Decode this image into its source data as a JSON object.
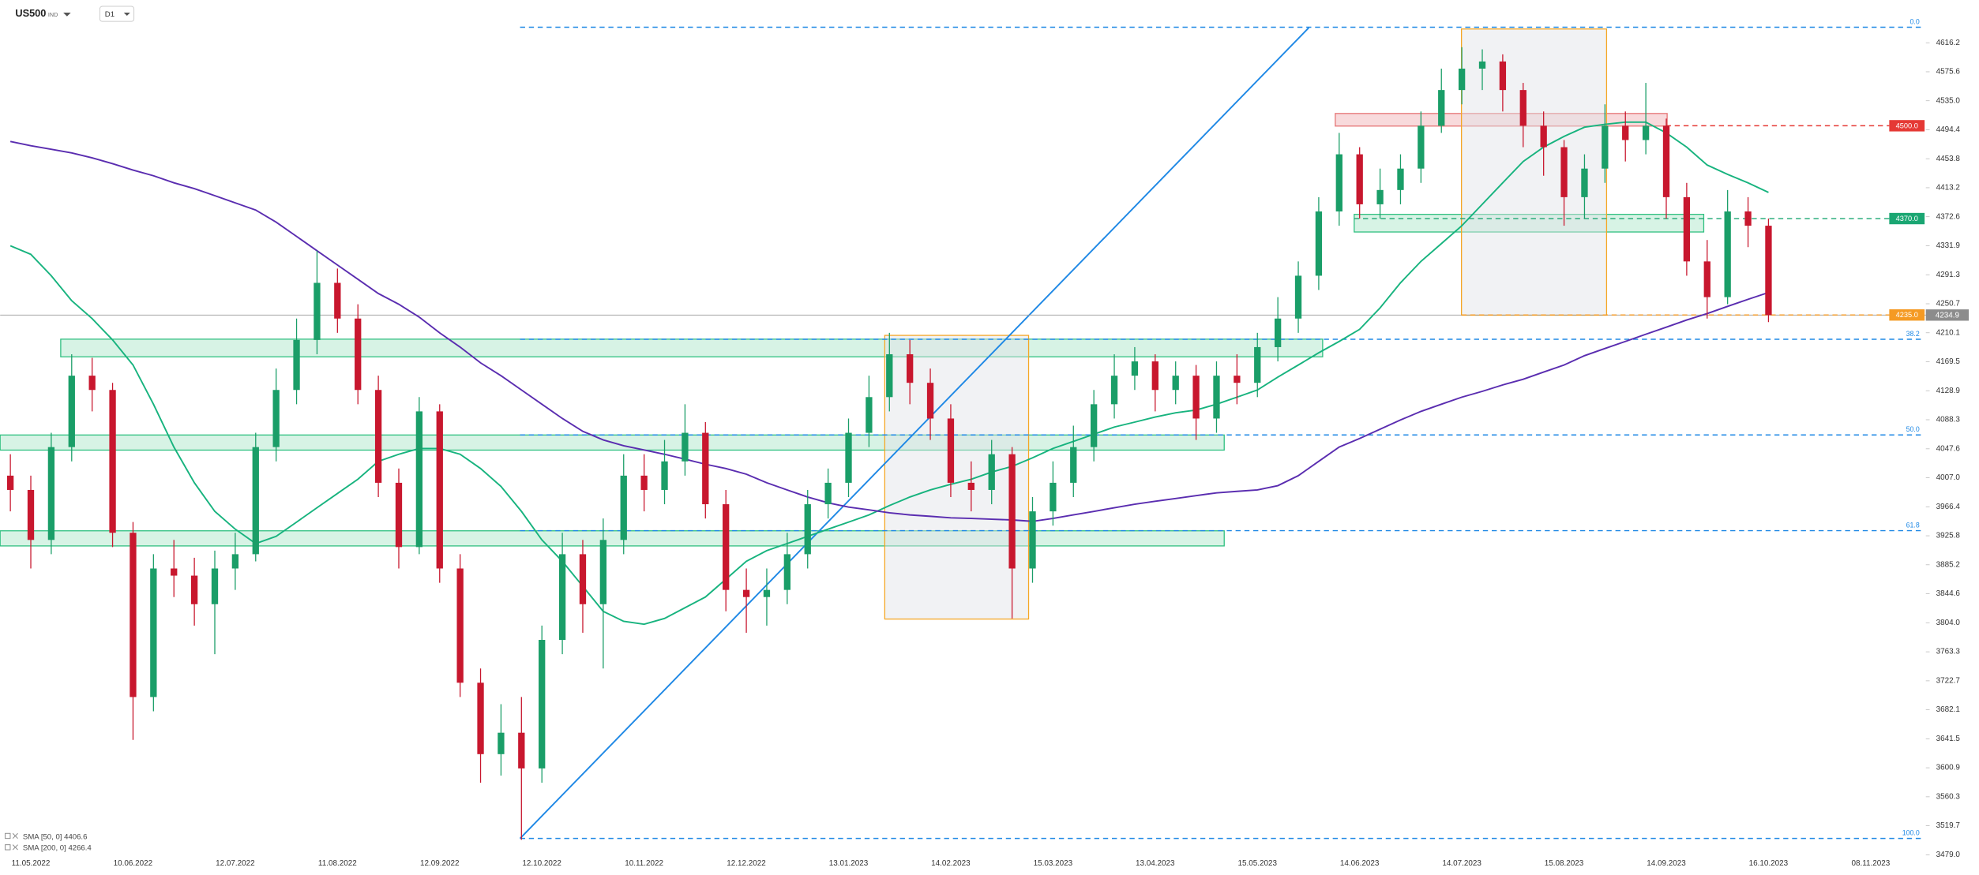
{
  "chart_data": {
    "type": "candlestick",
    "title": "US500",
    "subtitle": "IND",
    "timeframe": "D1",
    "up_color": "#1a9e68",
    "down_color": "#c8172e",
    "categories": [
      null,
      "11.05.2022",
      null,
      null,
      null,
      null,
      "10.06.2022",
      null,
      null,
      null,
      null,
      "12.07.2022",
      null,
      null,
      null,
      null,
      "11.08.2022",
      null,
      null,
      null,
      null,
      "12.09.2022",
      null,
      null,
      null,
      null,
      "12.10.2022",
      null,
      null,
      null,
      null,
      "10.11.2022",
      null,
      null,
      null,
      null,
      "12.12.2022",
      null,
      null,
      null,
      null,
      "13.01.2023",
      null,
      null,
      null,
      null,
      "14.02.2023",
      null,
      null,
      null,
      null,
      "15.03.2023",
      null,
      null,
      null,
      null,
      "13.04.2023",
      null,
      null,
      null,
      null,
      "15.05.2023",
      null,
      null,
      null,
      null,
      "14.06.2023",
      null,
      null,
      null,
      null,
      "14.07.2023",
      null,
      null,
      null,
      null,
      "15.08.2023",
      null,
      null,
      null,
      null,
      "14.09.2023",
      null,
      null,
      null,
      null,
      "16.10.2023",
      null,
      null,
      null,
      null,
      "08.11.2023"
    ],
    "open": [
      4010,
      3990,
      3920,
      4050,
      4150,
      4130,
      3930,
      3700,
      3880,
      3870,
      3830,
      3880,
      3900,
      4050,
      4130,
      4200,
      4280,
      4230,
      4130,
      4000,
      3910,
      4100,
      3880,
      3720,
      3620,
      3650,
      3600,
      3780,
      3900,
      3830,
      3920,
      4010,
      3990,
      4030,
      4070,
      3970,
      3850,
      3840,
      3850,
      3900,
      3970,
      4000,
      4070,
      4120,
      4180,
      4140,
      4090,
      4000,
      3990,
      4040,
      3880,
      3960,
      4000,
      4050,
      4110,
      4150,
      4170,
      4130,
      4150,
      4090,
      4150,
      4140,
      4190,
      4230,
      4290,
      4380,
      4460,
      4390,
      4410,
      4440,
      4500,
      4550,
      4580,
      4590,
      4550,
      4500,
      4470,
      4400,
      4440,
      4500,
      4480,
      4500,
      4400,
      4310,
      4260,
      4380,
      4360,
      null,
      null,
      null,
      null,
      null
    ],
    "high": [
      4040,
      4010,
      4070,
      4180,
      4175,
      4140,
      3945,
      3900,
      3920,
      3895,
      3905,
      3930,
      4070,
      4160,
      4230,
      4325,
      4300,
      4250,
      4150,
      4020,
      4120,
      4110,
      3900,
      3740,
      3690,
      3700,
      3800,
      3930,
      3920,
      3950,
      4040,
      4040,
      4060,
      4110,
      4085,
      3990,
      3880,
      3880,
      3930,
      3990,
      4020,
      4090,
      4150,
      4210,
      4200,
      4160,
      4110,
      4030,
      4060,
      4050,
      3980,
      4030,
      4080,
      4130,
      4180,
      4190,
      4180,
      4170,
      4165,
      4170,
      4180,
      4210,
      4260,
      4310,
      4400,
      4490,
      4470,
      4440,
      4460,
      4520,
      4580,
      4610,
      4607,
      4600,
      4560,
      4520,
      4480,
      4460,
      4530,
      4520,
      4560,
      4510,
      4420,
      4340,
      4410,
      4400,
      4370,
      null,
      null,
      null,
      null,
      null
    ],
    "low": [
      3960,
      3880,
      3900,
      4030,
      4100,
      3910,
      3640,
      3680,
      3840,
      3800,
      3760,
      3850,
      3890,
      4030,
      4110,
      4180,
      4210,
      4110,
      3980,
      3880,
      3900,
      3860,
      3700,
      3580,
      3590,
      3500,
      3580,
      3760,
      3790,
      3740,
      3900,
      3960,
      3970,
      4010,
      3950,
      3820,
      3790,
      3800,
      3830,
      3880,
      3950,
      3980,
      4050,
      4100,
      4110,
      4060,
      3980,
      3960,
      3970,
      3810,
      3860,
      3940,
      3980,
      4030,
      4090,
      4130,
      4100,
      4110,
      4060,
      4070,
      4110,
      4120,
      4170,
      4210,
      4270,
      4360,
      4370,
      4370,
      4390,
      4420,
      4490,
      4530,
      4550,
      4520,
      4470,
      4430,
      4360,
      4370,
      4420,
      4450,
      4460,
      4370,
      4290,
      4230,
      4250,
      4330,
      4225,
      null,
      null,
      null,
      null,
      null
    ],
    "close": [
      3990,
      3920,
      4050,
      4150,
      4130,
      3930,
      3700,
      3880,
      3870,
      3830,
      3880,
      3900,
      4050,
      4130,
      4200,
      4280,
      4230,
      4130,
      4000,
      3910,
      4100,
      3880,
      3720,
      3620,
      3650,
      3600,
      3780,
      3900,
      3830,
      3920,
      4010,
      3990,
      4030,
      4070,
      3970,
      3850,
      3840,
      3850,
      3900,
      3970,
      4000,
      4070,
      4120,
      4180,
      4140,
      4090,
      4000,
      3990,
      4040,
      3880,
      3960,
      4000,
      4050,
      4110,
      4150,
      4170,
      4130,
      4150,
      4090,
      4150,
      4140,
      4190,
      4230,
      4290,
      4380,
      4460,
      4390,
      4410,
      4440,
      4500,
      4550,
      4580,
      4590,
      4550,
      4500,
      4470,
      4400,
      4440,
      4500,
      4480,
      4500,
      4400,
      4310,
      4260,
      4380,
      4360,
      4234.9,
      null,
      null,
      null,
      null,
      null
    ],
    "overlays": [
      {
        "name": "SMA [50, 0]",
        "color": "#17b37e",
        "values": [
          4332,
          4320,
          4290,
          4255,
          4230,
          4200,
          4165,
          4110,
          4050,
          4000,
          3960,
          3935,
          3915,
          3925,
          3945,
          3965,
          3985,
          4005,
          4030,
          4040,
          4048,
          4048,
          4040,
          4020,
          3995,
          3960,
          3920,
          3890,
          3855,
          3820,
          3806,
          3802,
          3810,
          3825,
          3840,
          3865,
          3890,
          3905,
          3915,
          3925,
          3935,
          3945,
          3955,
          3968,
          3980,
          3990,
          3998,
          4005,
          4015,
          4023,
          4035,
          4048,
          4058,
          4068,
          4078,
          4085,
          4092,
          4098,
          4102,
          4110,
          4120,
          4130,
          4148,
          4165,
          4182,
          4198,
          4215,
          4245,
          4280,
          4310,
          4335,
          4360,
          4390,
          4420,
          4450,
          4470,
          4485,
          4498,
          4502,
          4505,
          4505,
          4490,
          4470,
          4445,
          4432,
          4420,
          4406.6,
          null,
          null,
          null,
          null,
          null
        ]
      },
      {
        "name": "SMA [200, 0]",
        "color": "#5a2db0",
        "values": [
          4478,
          4472,
          4467,
          4462,
          4455,
          4447,
          4438,
          4430,
          4420,
          4412,
          4402,
          4392,
          4382,
          4365,
          4345,
          4325,
          4305,
          4285,
          4265,
          4250,
          4232,
          4210,
          4190,
          4168,
          4150,
          4130,
          4110,
          4090,
          4072,
          4060,
          4052,
          4046,
          4040,
          4033,
          4026,
          4020,
          4012,
          4000,
          3990,
          3980,
          3972,
          3966,
          3962,
          3958,
          3955,
          3953,
          3951,
          3950,
          3949,
          3948,
          3946,
          3950,
          3955,
          3960,
          3965,
          3970,
          3974,
          3978,
          3982,
          3986,
          3988,
          3990,
          3996,
          4010,
          4030,
          4050,
          4062,
          4075,
          4088,
          4100,
          4110,
          4120,
          4128,
          4137,
          4145,
          4155,
          4165,
          4178,
          4188,
          4198,
          4208,
          4218,
          4228,
          4237,
          4247,
          4257,
          4266.4,
          null,
          null,
          null,
          null,
          null
        ]
      }
    ],
    "ylim": [
      3479.0,
      4676.1
    ],
    "yticks": [
      4616.2,
      4575.6,
      {
        "value": 4535.0,
        "label": "4535.0"
      },
      4494.4,
      4453.8,
      4413.2,
      4372.6,
      4331.9,
      4291.3,
      4250.7,
      4210.1,
      4169.5,
      4128.9,
      4088.3,
      4047.6,
      {
        "value": 4007.0,
        "label": "4007.0"
      },
      3966.4,
      3925.8,
      3885.2,
      3844.6,
      {
        "value": 3804.0,
        "label": "3804.0"
      },
      3763.3,
      3722.7,
      3682.1,
      3641.5,
      3600.9,
      3560.3,
      3519.7,
      {
        "value": 3479.0,
        "label": "3479.0"
      }
    ],
    "fib_levels": [
      {
        "value": 4638,
        "label": "0.0"
      },
      {
        "value": 4201,
        "label": "38.2"
      },
      {
        "value": 4067,
        "label": "50.0"
      },
      {
        "value": 3933,
        "label": "61.8"
      },
      {
        "value": 3502,
        "label": "100.0"
      }
    ],
    "fib_color": "#1e88e5",
    "levels": [
      {
        "value": 4500,
        "label": "4500.0",
        "color": "#e53935"
      },
      {
        "value": 4370,
        "label": "4370.0",
        "color": "#1aa672"
      },
      {
        "value": 4235,
        "label": "4235.0",
        "color": "#f59a23"
      }
    ]
  }
}
